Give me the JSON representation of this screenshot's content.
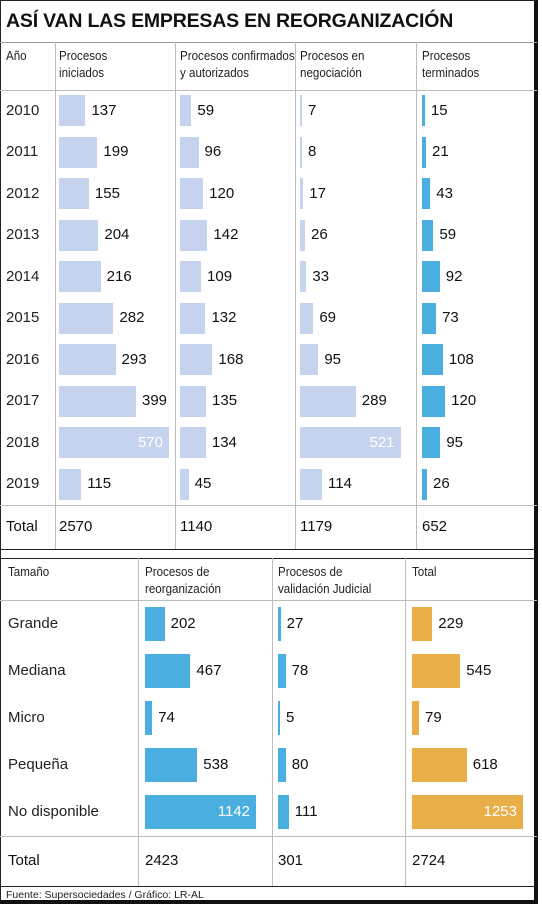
{
  "title": "ASÍ VAN LAS EMPRESAS EN REORGANIZACIÓN",
  "source": "Fuente: Supersociedades / Gráfico: LR-AL",
  "colors": {
    "light_blue": "#c5d3ef",
    "blue": "#4aaee0",
    "orange": "#e8ae48"
  },
  "chart_data": [
    {
      "type": "bar",
      "row_header": "Año",
      "categories": [
        "2010",
        "2011",
        "2012",
        "2013",
        "2014",
        "2015",
        "2016",
        "2017",
        "2018",
        "2019"
      ],
      "total_label": "Total",
      "series": [
        {
          "name": "Procesos iniciados",
          "header_lines": [
            "Procesos",
            "iniciados"
          ],
          "values": [
            137,
            199,
            155,
            204,
            216,
            282,
            293,
            399,
            570,
            115
          ],
          "total": "2570",
          "color": "#c5d3ef"
        },
        {
          "name": "Procesos confirmados y autorizados",
          "header_lines": [
            "Procesos confirmados",
            "y autorizados"
          ],
          "values": [
            59,
            96,
            120,
            142,
            109,
            132,
            168,
            135,
            134,
            45
          ],
          "total": "1140",
          "color": "#c5d3ef"
        },
        {
          "name": "Procesos en negociación",
          "header_lines": [
            "Procesos en",
            "negociación"
          ],
          "values": [
            7,
            8,
            17,
            26,
            33,
            69,
            95,
            289,
            521,
            114
          ],
          "total": "1179",
          "color": "#c5d3ef"
        },
        {
          "name": "Procesos terminados",
          "header_lines": [
            "Procesos",
            "terminados"
          ],
          "values": [
            15,
            21,
            43,
            59,
            92,
            73,
            108,
            120,
            95,
            26
          ],
          "total": "652",
          "color": "#4aaee0"
        }
      ]
    },
    {
      "type": "bar",
      "row_header": "Tamaño",
      "categories": [
        "Grande",
        "Mediana",
        "Micro",
        "Pequeña",
        "No disponible"
      ],
      "total_label": "Total",
      "series": [
        {
          "name": "Procesos de reorganización",
          "header_lines": [
            "Procesos de",
            "reorganización"
          ],
          "values": [
            202,
            467,
            74,
            538,
            1142
          ],
          "total": "2423",
          "color": "#4aaee0"
        },
        {
          "name": "Procesos de validación Judicial",
          "header_lines": [
            "Procesos de",
            "validación Judicial"
          ],
          "values": [
            27,
            78,
            5,
            80,
            111
          ],
          "total": "301",
          "color": "#4aaee0"
        },
        {
          "name": "Total",
          "header_lines": [
            "Total"
          ],
          "values": [
            229,
            545,
            79,
            618,
            1253
          ],
          "total": "2724",
          "color": "#e8ae48"
        }
      ]
    }
  ]
}
